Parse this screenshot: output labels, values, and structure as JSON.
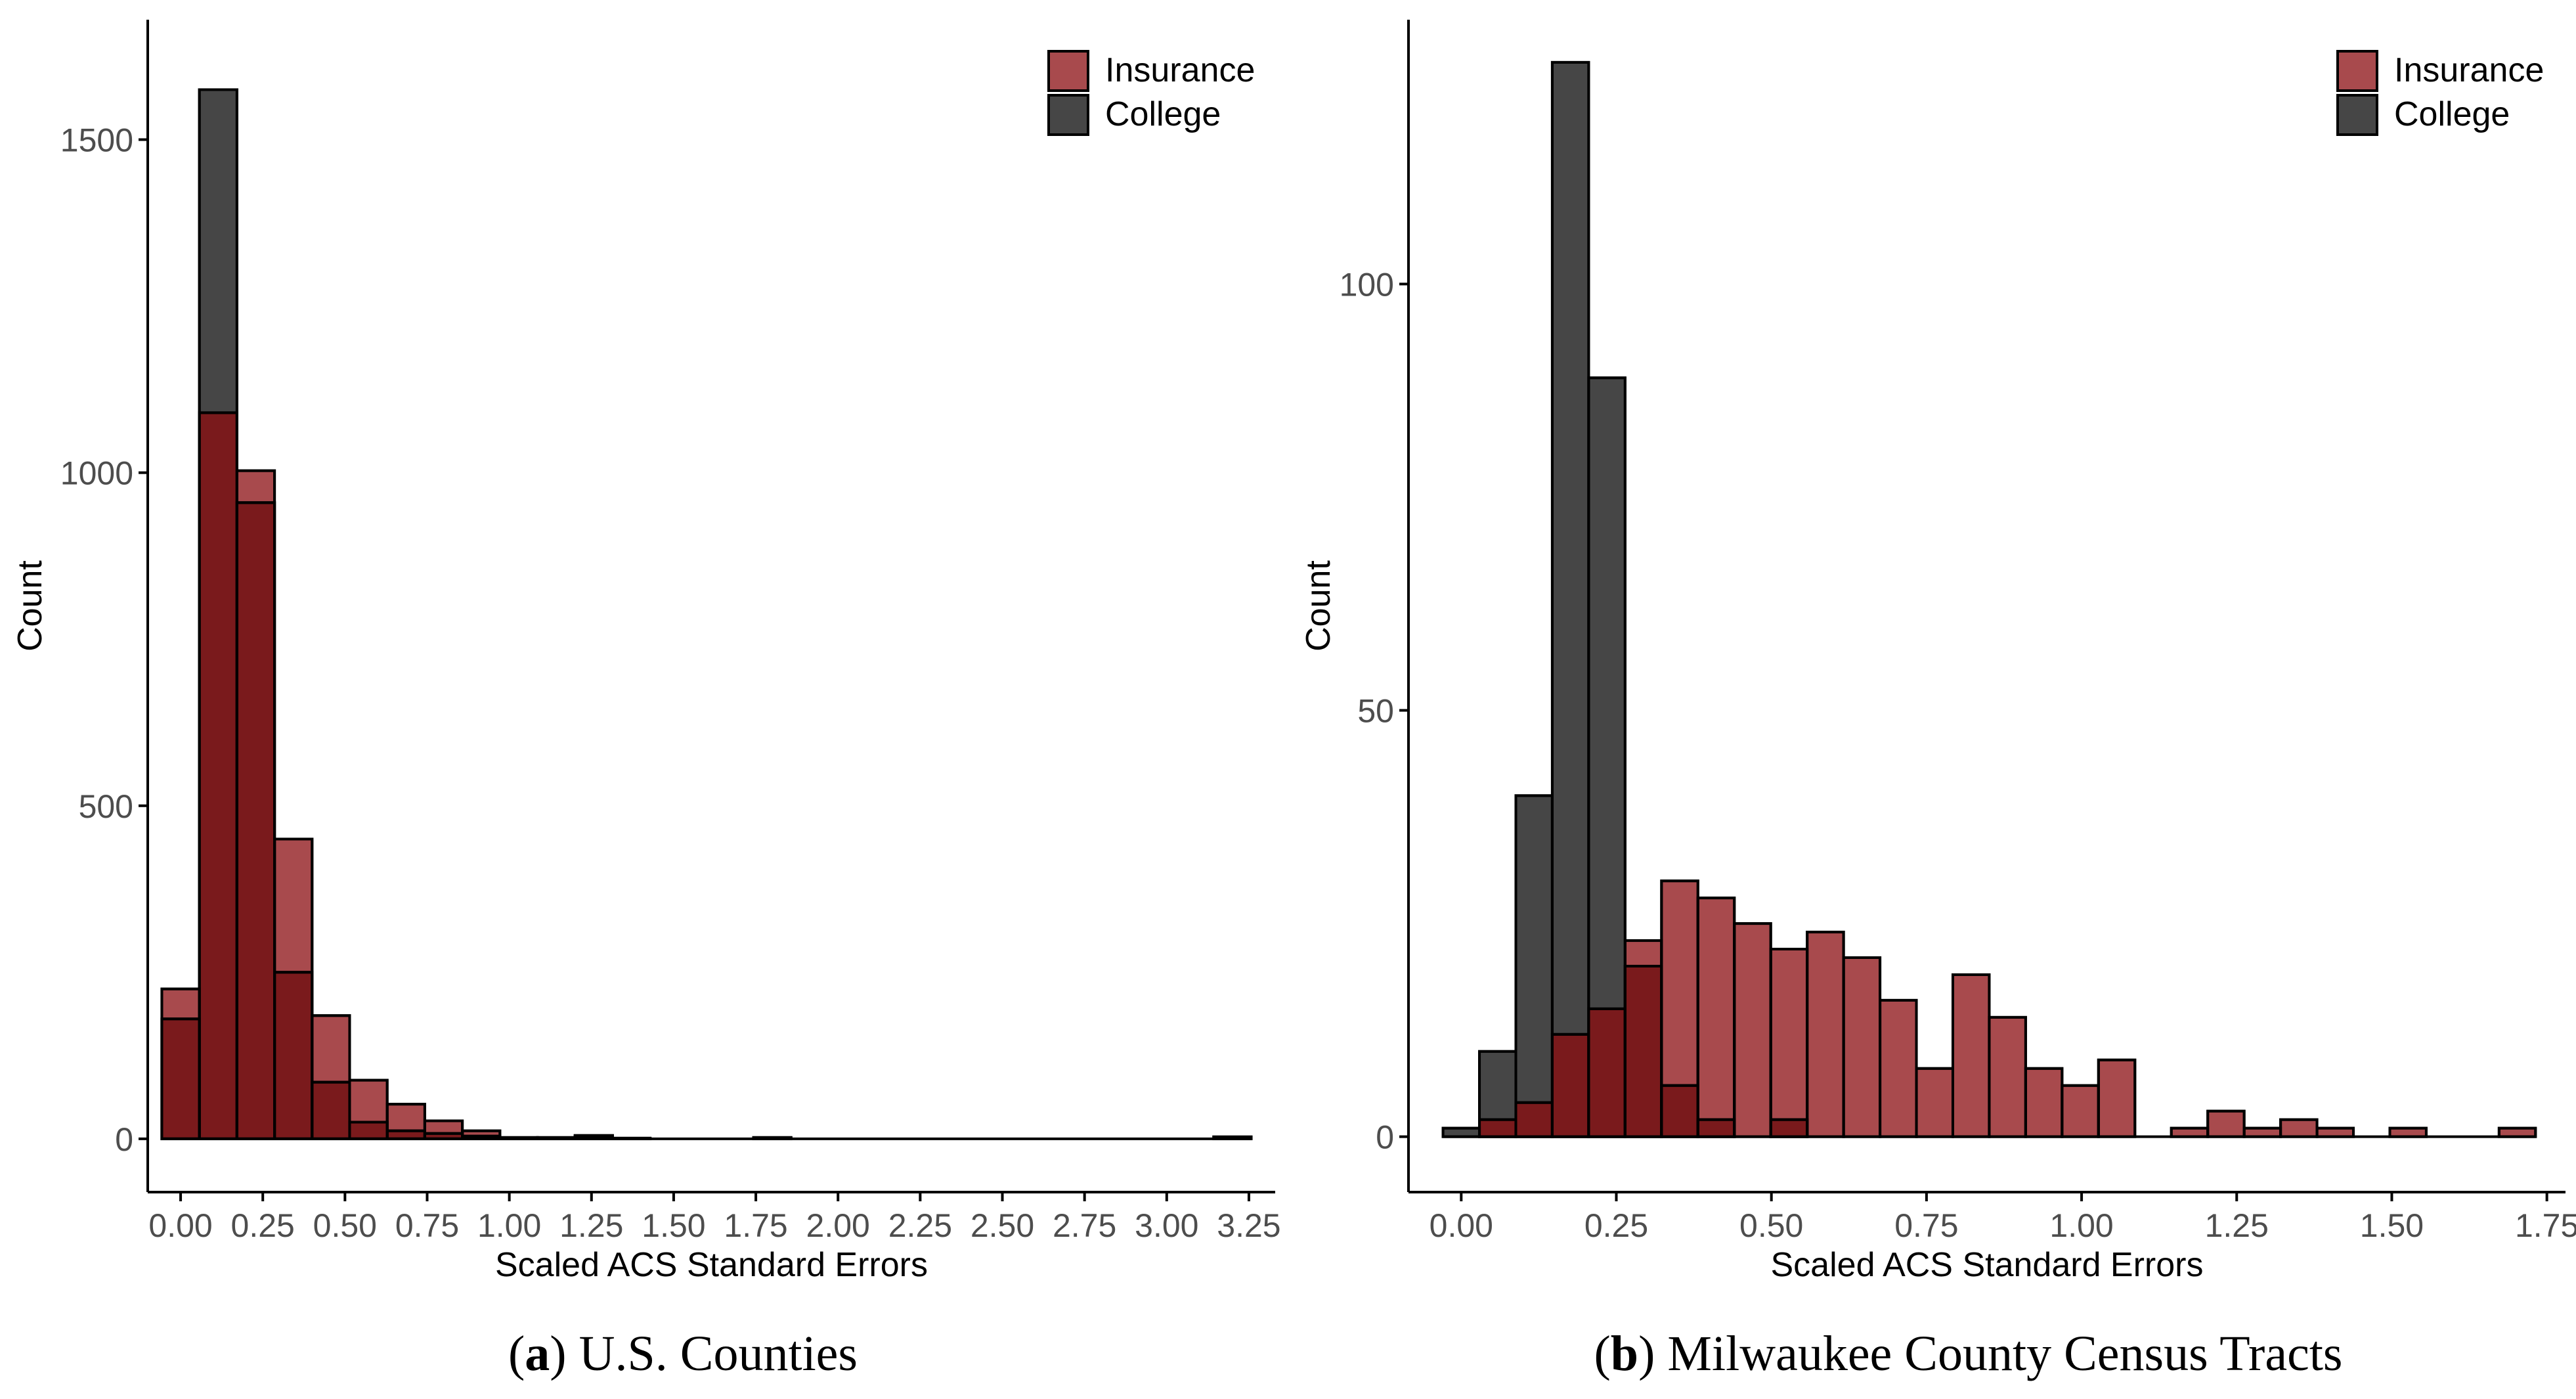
{
  "colors": {
    "insurance_fill": "#A84A4D",
    "college_fill": "#464646",
    "overlap_fill": "#7A1A1C",
    "bar_stroke": "#000000",
    "axis": "#000000",
    "tick_label": "#4D4D4D"
  },
  "chart_data": [
    {
      "type": "bar",
      "subtype": "overlaid-histogram",
      "caption_letter": "a",
      "caption_text": "U.S. Counties",
      "xlabel": "Scaled ACS Standard Errors",
      "ylabel": "Count",
      "xlim": [
        -0.1,
        3.33
      ],
      "ylim": [
        -80,
        1680
      ],
      "bin_width": 0.1143,
      "x_ticks": [
        0.0,
        0.25,
        0.5,
        0.75,
        1.0,
        1.25,
        1.5,
        1.75,
        2.0,
        2.25,
        2.5,
        2.75,
        3.0,
        3.25
      ],
      "x_tick_labels": [
        "0.00",
        "0.25",
        "0.50",
        "0.75",
        "1.00",
        "1.25",
        "1.50",
        "1.75",
        "2.00",
        "2.25",
        "2.50",
        "2.75",
        "3.00",
        "3.25"
      ],
      "y_ticks": [
        0,
        500,
        1000,
        1500
      ],
      "y_tick_labels": [
        "0",
        "500",
        "1000",
        "1500"
      ],
      "grid": false,
      "legend_position": "top-right",
      "series": [
        {
          "name": "Insurance",
          "color_key": "insurance_fill",
          "bin_centers": [
            0.0,
            0.1143,
            0.2286,
            0.3429,
            0.4571,
            0.5714,
            0.6857,
            0.8,
            0.9143,
            1.0286,
            1.1429,
            1.2571,
            1.3714
          ],
          "values": [
            225,
            1090,
            1003,
            450,
            185,
            88,
            52,
            27,
            12,
            2,
            2,
            3,
            1
          ]
        },
        {
          "name": "College",
          "color_key": "college_fill",
          "bin_centers": [
            0.0,
            0.1143,
            0.2286,
            0.3429,
            0.4571,
            0.5714,
            0.6857,
            0.8,
            0.9143,
            1.2571,
            1.8,
            3.2
          ],
          "values": [
            180,
            1575,
            955,
            250,
            85,
            25,
            12,
            8,
            4,
            5,
            2,
            3
          ]
        }
      ]
    },
    {
      "type": "bar",
      "subtype": "overlaid-histogram",
      "caption_letter": "b",
      "caption_text": "Milwaukee County Census Tracts",
      "xlabel": "Scaled ACS Standard Errors",
      "ylabel": "Count",
      "xlim": [
        -0.085,
        1.78
      ],
      "ylim": [
        -6.5,
        131
      ],
      "bin_width": 0.0587,
      "x_ticks": [
        0.0,
        0.25,
        0.5,
        0.75,
        1.0,
        1.25,
        1.5,
        1.75
      ],
      "x_tick_labels": [
        "0.00",
        "0.25",
        "0.50",
        "0.75",
        "1.00",
        "1.25",
        "1.50",
        "1.75"
      ],
      "y_ticks": [
        0,
        50,
        100
      ],
      "y_tick_labels": [
        "0",
        "50",
        "100"
      ],
      "grid": false,
      "legend_position": "top-right",
      "series": [
        {
          "name": "Insurance",
          "color_key": "insurance_fill",
          "bin_centers": [
            0.0,
            0.0587,
            0.1174,
            0.1761,
            0.2348,
            0.2935,
            0.3522,
            0.4109,
            0.4696,
            0.5283,
            0.587,
            0.6457,
            0.7044,
            0.7631,
            0.8218,
            0.8805,
            0.9392,
            0.9979,
            1.0566,
            1.1153,
            1.174,
            1.2327,
            1.2914,
            1.3501,
            1.4088,
            1.4675,
            1.5262,
            1.5849,
            1.6436,
            1.7023
          ],
          "values": [
            0,
            2,
            4,
            12,
            15,
            23,
            30,
            28,
            25,
            22,
            24,
            21,
            16,
            8,
            19,
            14,
            8,
            6,
            9,
            0,
            1,
            3,
            1,
            2,
            1,
            0,
            1,
            0,
            0,
            1
          ]
        },
        {
          "name": "College",
          "color_key": "college_fill",
          "bin_centers": [
            0.0,
            0.0587,
            0.1174,
            0.1761,
            0.2348,
            0.2935,
            0.3522,
            0.4109,
            0.4696,
            0.5283
          ],
          "values": [
            1,
            10,
            40,
            126,
            89,
            20,
            6,
            2,
            0,
            2
          ]
        }
      ]
    }
  ]
}
